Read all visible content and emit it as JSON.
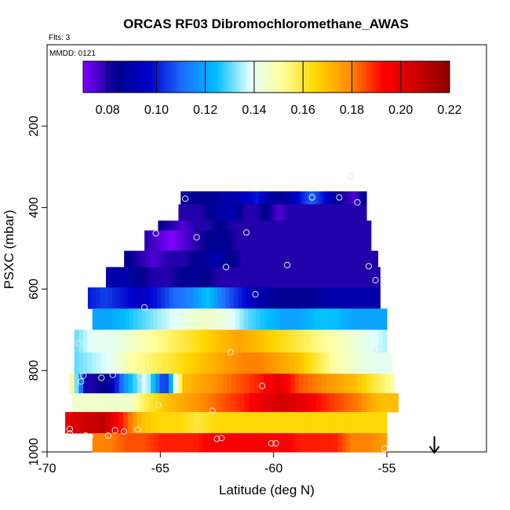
{
  "chart_data": {
    "type": "heatmap",
    "title": "ORCAS RF03 Dibromochloromethane_AWAS",
    "flights_label": "Flts: 3",
    "date_label": "MMDD: 0121",
    "xlabel": "Latitude (deg N)",
    "ylabel": "PSXC (mbar)",
    "xlim": [
      -70,
      -50.6
    ],
    "ylim": [
      1000,
      0
    ],
    "x_ticks": [
      -70,
      -65,
      -60,
      -55
    ],
    "x_tick_labels": [
      "-70",
      "-65",
      "-60",
      "-55"
    ],
    "y_ticks": [
      200,
      400,
      600,
      800,
      1000
    ],
    "y_tick_labels": [
      "200",
      "400",
      "600",
      "800",
      "1000"
    ],
    "colorbar": {
      "range": [
        0.07,
        0.22
      ],
      "ticks": [
        0.08,
        0.1,
        0.12,
        0.14,
        0.16,
        0.18,
        0.2,
        0.22
      ],
      "tick_labels": [
        "0.08",
        "0.10",
        "0.12",
        "0.14",
        "0.16",
        "0.18",
        "0.20",
        "0.22"
      ],
      "colors": [
        "#8000ff",
        "#00008b",
        "#0000cd",
        "#1e6fff",
        "#00bfff",
        "#e0ffff",
        "#ffff99",
        "#ffd700",
        "#ff8c00",
        "#ff0000",
        "#cd0000",
        "#8b0000"
      ]
    },
    "bands": [
      {
        "p_top": 360,
        "p_bot": 392,
        "lat_start": -64.1,
        "lat_end": -55.9,
        "values": [
          0.085,
          0.085,
          0.085,
          0.085,
          0.09,
          0.09,
          0.095,
          0.1,
          0.09,
          0.085,
          0.09,
          0.1,
          0.11,
          0.1,
          0.09,
          0.08,
          0.075,
          0.09
        ]
      },
      {
        "p_top": 392,
        "p_bot": 432,
        "lat_start": -64.2,
        "lat_end": -55.9,
        "values": [
          0.08,
          0.08,
          0.08,
          0.085,
          0.09,
          0.09,
          0.08,
          0.08,
          0.085,
          0.075,
          0.08,
          0.08,
          0.08,
          0.08,
          0.08,
          0.08,
          0.08,
          0.08
        ]
      },
      {
        "p_top": 432,
        "p_bot": 456,
        "lat_start": -65.1,
        "lat_end": -55.7,
        "values": [
          0.085,
          0.08,
          0.075,
          0.08,
          0.08,
          0.085,
          0.08,
          0.08,
          0.08,
          0.08,
          0.08,
          0.08,
          0.08,
          0.08,
          0.08,
          0.08,
          0.08,
          0.08
        ]
      },
      {
        "p_top": 456,
        "p_bot": 506,
        "lat_start": -65.7,
        "lat_end": -55.7,
        "values": [
          0.08,
          0.075,
          0.07,
          0.075,
          0.08,
          0.085,
          0.085,
          0.08,
          0.08,
          0.08,
          0.08,
          0.08,
          0.08,
          0.08,
          0.08,
          0.08,
          0.08,
          0.08
        ]
      },
      {
        "p_top": 506,
        "p_bot": 546,
        "lat_start": -66.6,
        "lat_end": -55.4,
        "values": [
          0.085,
          0.08,
          0.075,
          0.08,
          0.08,
          0.085,
          0.09,
          0.085,
          0.08,
          0.08,
          0.08,
          0.08,
          0.08,
          0.08,
          0.08,
          0.08,
          0.08,
          0.08
        ]
      },
      {
        "p_top": 546,
        "p_bot": 596,
        "lat_start": -67.4,
        "lat_end": -55.3,
        "values": [
          0.09,
          0.09,
          0.085,
          0.08,
          0.08,
          0.085,
          0.085,
          0.08,
          0.08,
          0.08,
          0.08,
          0.08,
          0.08,
          0.08,
          0.08,
          0.08,
          0.08,
          0.08
        ]
      },
      {
        "p_top": 596,
        "p_bot": 648,
        "lat_start": -68.2,
        "lat_end": -55.3,
        "values": [
          0.1,
          0.105,
          0.1,
          0.095,
          0.1,
          0.11,
          0.115,
          0.125,
          0.11,
          0.1,
          0.09,
          0.085,
          0.085,
          0.085,
          0.09,
          0.09,
          0.09,
          0.09
        ]
      },
      {
        "p_top": 648,
        "p_bot": 700,
        "lat_start": -68.0,
        "lat_end": -55.0,
        "values": [
          0.12,
          0.12,
          0.125,
          0.13,
          0.135,
          0.14,
          0.145,
          0.145,
          0.14,
          0.13,
          0.125,
          0.12,
          0.12,
          0.125,
          0.125,
          0.12,
          0.12,
          0.12
        ]
      },
      {
        "p_top": 700,
        "p_bot": 756,
        "lat_start": -68.8,
        "lat_end": -55.0,
        "values": [
          0.13,
          0.14,
          0.14,
          0.145,
          0.15,
          0.155,
          0.16,
          0.165,
          0.17,
          0.175,
          0.17,
          0.165,
          0.16,
          0.155,
          0.15,
          0.145,
          0.14,
          0.135
        ]
      },
      {
        "p_top": 756,
        "p_bot": 808,
        "lat_start": -68.8,
        "lat_end": -54.8,
        "values": [
          0.13,
          0.135,
          0.14,
          0.15,
          0.155,
          0.16,
          0.165,
          0.17,
          0.175,
          0.18,
          0.18,
          0.175,
          0.17,
          0.16,
          0.15,
          0.145,
          0.14,
          0.14
        ]
      },
      {
        "p_top": 808,
        "p_bot": 856,
        "lat_start": -69.0,
        "lat_end": -54.7,
        "values": [
          0.16,
          0.08,
          0.085,
          0.12,
          0.14,
          0.1,
          0.17,
          0.175,
          0.18,
          0.185,
          0.19,
          0.2,
          0.185,
          0.18,
          0.175,
          0.17,
          0.16,
          0.15
        ]
      },
      {
        "p_top": 856,
        "p_bot": 902,
        "lat_start": -68.9,
        "lat_end": -54.5,
        "values": [
          0.145,
          0.145,
          0.145,
          0.145,
          0.16,
          0.17,
          0.175,
          0.18,
          0.185,
          0.19,
          0.2,
          0.205,
          0.2,
          0.19,
          0.185,
          0.18,
          0.17,
          0.17
        ]
      },
      {
        "p_top": 902,
        "p_bot": 954,
        "lat_start": -69.2,
        "lat_end": -55.0,
        "values": [
          0.2,
          0.205,
          0.21,
          0.19,
          0.17,
          0.165,
          0.165,
          0.16,
          0.165,
          0.165,
          0.165,
          0.165,
          0.165,
          0.165,
          0.165,
          0.165,
          0.165,
          0.165
        ]
      },
      {
        "p_top": 954,
        "p_bot": 1000,
        "lat_start": -68.0,
        "lat_end": -55.0,
        "values": [
          0.18,
          0.18,
          0.185,
          0.185,
          0.19,
          0.19,
          0.19,
          0.195,
          0.195,
          0.195,
          0.195,
          0.195,
          0.19,
          0.19,
          0.19,
          0.18,
          0.18,
          0.175
        ]
      }
    ],
    "sample_points": [
      {
        "lat": -56.6,
        "p": 323
      },
      {
        "lat": -63.9,
        "p": 378
      },
      {
        "lat": -58.3,
        "p": 375
      },
      {
        "lat": -57.1,
        "p": 375
      },
      {
        "lat": -56.3,
        "p": 387
      },
      {
        "lat": -61.2,
        "p": 461
      },
      {
        "lat": -65.2,
        "p": 463
      },
      {
        "lat": -63.4,
        "p": 473
      },
      {
        "lat": -59.4,
        "p": 541
      },
      {
        "lat": -62.1,
        "p": 546
      },
      {
        "lat": -55.8,
        "p": 544
      },
      {
        "lat": -55.5,
        "p": 578
      },
      {
        "lat": -60.8,
        "p": 613
      },
      {
        "lat": -65.7,
        "p": 645
      },
      {
        "lat": -64.1,
        "p": 658
      },
      {
        "lat": -68.6,
        "p": 733
      },
      {
        "lat": -61.9,
        "p": 755
      },
      {
        "lat": -55.4,
        "p": 749
      },
      {
        "lat": -68.4,
        "p": 813
      },
      {
        "lat": -67.1,
        "p": 811
      },
      {
        "lat": -68.5,
        "p": 827
      },
      {
        "lat": -65.9,
        "p": 815
      },
      {
        "lat": -67.6,
        "p": 818
      },
      {
        "lat": -60.5,
        "p": 838
      },
      {
        "lat": -62.7,
        "p": 899
      },
      {
        "lat": -65.1,
        "p": 885
      },
      {
        "lat": -69.0,
        "p": 944
      },
      {
        "lat": -67.0,
        "p": 947
      },
      {
        "lat": -66.0,
        "p": 945
      },
      {
        "lat": -69.0,
        "p": 955
      },
      {
        "lat": -68.3,
        "p": 960
      },
      {
        "lat": -68.1,
        "p": 962
      },
      {
        "lat": -67.3,
        "p": 960
      },
      {
        "lat": -66.6,
        "p": 950
      },
      {
        "lat": -62.5,
        "p": 968
      },
      {
        "lat": -62.3,
        "p": 966
      },
      {
        "lat": -60.1,
        "p": 979
      },
      {
        "lat": -59.9,
        "p": 979
      },
      {
        "lat": -55.1,
        "p": 992
      }
    ],
    "arrow_marker": {
      "lat": -52.9,
      "direction": "down"
    },
    "colors": {
      "points": "#e8e8e8",
      "frame": "#000000"
    }
  }
}
